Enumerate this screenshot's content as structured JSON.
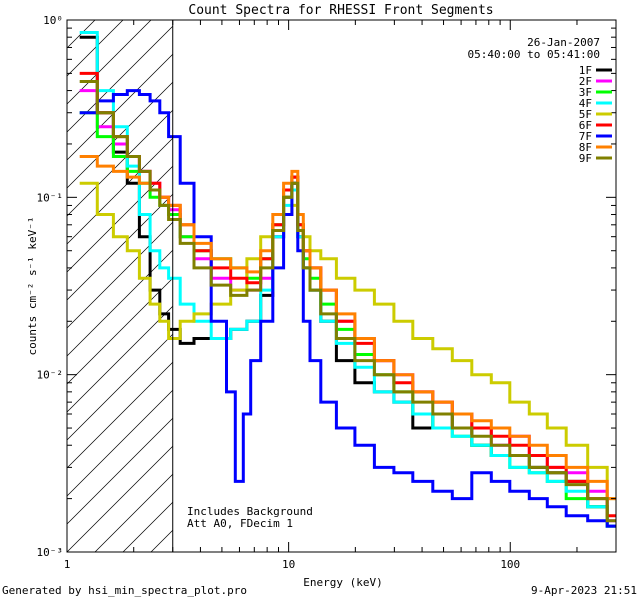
{
  "chart_data": {
    "type": "line",
    "title": "Count Spectra for RHESSI Front Segments",
    "xlabel": "Energy (keV)",
    "ylabel": "counts cm⁻² s⁻¹ keV⁻¹",
    "xscale": "log",
    "yscale": "log",
    "xlim": [
      1,
      300
    ],
    "ylim": [
      0.001,
      1
    ],
    "x_ticks": [
      {
        "value": 1,
        "label": "1"
      },
      {
        "value": 10,
        "label": "10"
      },
      {
        "value": 100,
        "label": "100"
      }
    ],
    "y_ticks": [
      {
        "value": 1,
        "label": "10⁰"
      },
      {
        "value": 0.1,
        "label": "10⁻¹"
      },
      {
        "value": 0.01,
        "label": "10⁻²"
      },
      {
        "value": 0.001,
        "label": "10⁻³"
      }
    ],
    "hatched_region": {
      "x_from": 1,
      "x_to": 3
    },
    "date": "26-Jan-2007",
    "time_range": "05:40:00 to 05:41:00",
    "legend": {
      "position": "top-right"
    },
    "annotations": [
      "Includes Background",
      "Att A0, FDecim 1"
    ],
    "footer_left": "Generated by hsi_min_spectra_plot.pro",
    "footer_right": "9-Apr-2023 21:51",
    "series": [
      {
        "name": "1F",
        "color": "#000000",
        "x": [
          1.25,
          1.5,
          1.75,
          2.0,
          2.25,
          2.5,
          2.75,
          3.0,
          3.5,
          4.0,
          5.0,
          6.0,
          7.0,
          8.0,
          9.0,
          10.0,
          10.7,
          11.3,
          12.0,
          13.0,
          15.0,
          18.0,
          22.0,
          27.0,
          33.0,
          40.0,
          50.0,
          60.0,
          75.0,
          90.0,
          110.0,
          135.0,
          160.0,
          200.0,
          250.0,
          300.0
        ],
        "values": [
          0.8,
          0.3,
          0.18,
          0.12,
          0.06,
          0.03,
          0.022,
          0.018,
          0.015,
          0.016,
          0.016,
          0.018,
          0.02,
          0.028,
          0.06,
          0.1,
          0.13,
          0.06,
          0.04,
          0.03,
          0.02,
          0.012,
          0.009,
          0.008,
          0.007,
          0.005,
          0.006,
          0.005,
          0.004,
          0.0035,
          0.0035,
          0.003,
          0.0028,
          0.0025,
          0.0018,
          0.0014
        ]
      },
      {
        "name": "2F",
        "color": "#ff00ff",
        "x": [
          1.25,
          1.5,
          1.75,
          2.0,
          2.25,
          2.5,
          2.75,
          3.0,
          3.5,
          4.0,
          5.0,
          6.0,
          7.0,
          8.0,
          9.0,
          10.0,
          10.7,
          11.3,
          12.0,
          13.0,
          15.0,
          18.0,
          22.0,
          27.0,
          33.0,
          40.0,
          50.0,
          60.0,
          75.0,
          90.0,
          110.0,
          135.0,
          160.0,
          200.0,
          250.0,
          300.0
        ],
        "values": [
          0.4,
          0.25,
          0.2,
          0.17,
          0.14,
          0.12,
          0.1,
          0.085,
          0.06,
          0.045,
          0.035,
          0.03,
          0.03,
          0.035,
          0.06,
          0.1,
          0.12,
          0.07,
          0.05,
          0.04,
          0.03,
          0.02,
          0.016,
          0.012,
          0.01,
          0.008,
          0.007,
          0.006,
          0.005,
          0.004,
          0.0045,
          0.0035,
          0.003,
          0.0028,
          0.0022,
          0.0015
        ]
      },
      {
        "name": "3F",
        "color": "#00ff00",
        "x": [
          1.25,
          1.5,
          1.75,
          2.0,
          2.25,
          2.5,
          2.75,
          3.0,
          3.5,
          4.0,
          5.0,
          6.0,
          7.0,
          8.0,
          9.0,
          10.0,
          10.7,
          11.3,
          12.0,
          13.0,
          15.0,
          18.0,
          22.0,
          27.0,
          33.0,
          40.0,
          50.0,
          60.0,
          75.0,
          90.0,
          110.0,
          135.0,
          160.0,
          200.0,
          250.0,
          300.0
        ],
        "values": [
          0.3,
          0.22,
          0.17,
          0.14,
          0.12,
          0.1,
          0.09,
          0.08,
          0.06,
          0.05,
          0.045,
          0.04,
          0.035,
          0.045,
          0.07,
          0.1,
          0.12,
          0.07,
          0.045,
          0.035,
          0.025,
          0.018,
          0.013,
          0.01,
          0.008,
          0.006,
          0.005,
          0.0045,
          0.004,
          0.0035,
          0.003,
          0.0028,
          0.0025,
          0.002,
          0.0018,
          0.0014
        ]
      },
      {
        "name": "4F",
        "color": "#00ffff",
        "x": [
          1.25,
          1.5,
          1.75,
          2.0,
          2.25,
          2.5,
          2.75,
          3.0,
          3.5,
          4.0,
          5.0,
          6.0,
          7.0,
          8.0,
          9.0,
          10.0,
          10.7,
          11.3,
          12.0,
          13.0,
          15.0,
          18.0,
          22.0,
          27.0,
          33.0,
          40.0,
          50.0,
          60.0,
          75.0,
          90.0,
          110.0,
          135.0,
          160.0,
          200.0,
          250.0,
          300.0
        ],
        "values": [
          0.85,
          0.4,
          0.25,
          0.15,
          0.08,
          0.05,
          0.04,
          0.035,
          0.025,
          0.02,
          0.016,
          0.018,
          0.02,
          0.03,
          0.06,
          0.09,
          0.11,
          0.06,
          0.04,
          0.03,
          0.02,
          0.015,
          0.011,
          0.008,
          0.007,
          0.006,
          0.005,
          0.0045,
          0.004,
          0.0035,
          0.003,
          0.0028,
          0.0025,
          0.0022,
          0.0018,
          0.0014
        ]
      },
      {
        "name": "5F",
        "color": "#cccc00",
        "x": [
          1.25,
          1.5,
          1.75,
          2.0,
          2.25,
          2.5,
          2.75,
          3.0,
          3.5,
          4.0,
          5.0,
          6.0,
          7.0,
          8.0,
          9.0,
          10.0,
          10.7,
          11.3,
          12.0,
          13.0,
          15.0,
          18.0,
          22.0,
          27.0,
          33.0,
          40.0,
          50.0,
          60.0,
          75.0,
          90.0,
          110.0,
          135.0,
          160.0,
          200.0,
          250.0,
          300.0
        ],
        "values": [
          0.12,
          0.08,
          0.06,
          0.05,
          0.035,
          0.025,
          0.02,
          0.016,
          0.02,
          0.022,
          0.025,
          0.03,
          0.045,
          0.06,
          0.07,
          0.08,
          0.09,
          0.07,
          0.06,
          0.05,
          0.045,
          0.035,
          0.03,
          0.025,
          0.02,
          0.016,
          0.014,
          0.012,
          0.01,
          0.009,
          0.007,
          0.006,
          0.005,
          0.004,
          0.003,
          0.002
        ]
      },
      {
        "name": "6F",
        "color": "#ff0000",
        "x": [
          1.25,
          1.5,
          1.75,
          2.0,
          2.25,
          2.5,
          2.75,
          3.0,
          3.5,
          4.0,
          5.0,
          6.0,
          7.0,
          8.0,
          9.0,
          10.0,
          10.7,
          11.3,
          12.0,
          13.0,
          15.0,
          18.0,
          22.0,
          27.0,
          33.0,
          40.0,
          50.0,
          60.0,
          75.0,
          90.0,
          110.0,
          135.0,
          160.0,
          200.0,
          250.0,
          300.0
        ],
        "values": [
          0.5,
          0.3,
          0.22,
          0.17,
          0.14,
          0.12,
          0.1,
          0.09,
          0.07,
          0.05,
          0.04,
          0.035,
          0.033,
          0.045,
          0.07,
          0.11,
          0.13,
          0.07,
          0.05,
          0.04,
          0.03,
          0.02,
          0.015,
          0.012,
          0.009,
          0.008,
          0.007,
          0.006,
          0.005,
          0.0045,
          0.004,
          0.0035,
          0.003,
          0.0025,
          0.002,
          0.0016
        ]
      },
      {
        "name": "7F",
        "color": "#0000ff",
        "x": [
          1.25,
          1.5,
          1.75,
          2.0,
          2.25,
          2.5,
          2.75,
          3.0,
          3.5,
          4.0,
          5.0,
          5.5,
          6.0,
          6.5,
          7.0,
          8.0,
          9.0,
          10.0,
          10.7,
          11.3,
          12.0,
          13.0,
          15.0,
          18.0,
          22.0,
          27.0,
          33.0,
          40.0,
          50.0,
          60.0,
          75.0,
          90.0,
          110.0,
          135.0,
          160.0,
          200.0,
          250.0,
          300.0
        ],
        "values": [
          0.3,
          0.35,
          0.38,
          0.4,
          0.38,
          0.35,
          0.3,
          0.22,
          0.12,
          0.06,
          0.02,
          0.008,
          0.0025,
          0.006,
          0.012,
          0.02,
          0.04,
          0.08,
          0.12,
          0.05,
          0.02,
          0.012,
          0.007,
          0.005,
          0.004,
          0.003,
          0.0028,
          0.0025,
          0.0022,
          0.002,
          0.0028,
          0.0025,
          0.0022,
          0.002,
          0.0018,
          0.0016,
          0.0015,
          0.0014
        ]
      },
      {
        "name": "8F",
        "color": "#ff8000",
        "x": [
          1.25,
          1.5,
          1.75,
          2.0,
          2.25,
          2.5,
          2.75,
          3.0,
          3.5,
          4.0,
          5.0,
          6.0,
          7.0,
          8.0,
          9.0,
          10.0,
          10.7,
          11.3,
          12.0,
          13.0,
          15.0,
          18.0,
          22.0,
          27.0,
          33.0,
          40.0,
          50.0,
          60.0,
          75.0,
          90.0,
          110.0,
          135.0,
          160.0,
          200.0,
          250.0,
          300.0
        ],
        "values": [
          0.17,
          0.15,
          0.14,
          0.13,
          0.12,
          0.11,
          0.1,
          0.09,
          0.07,
          0.055,
          0.045,
          0.04,
          0.038,
          0.05,
          0.08,
          0.12,
          0.14,
          0.08,
          0.05,
          0.04,
          0.03,
          0.022,
          0.016,
          0.012,
          0.01,
          0.008,
          0.007,
          0.006,
          0.0055,
          0.005,
          0.0045,
          0.004,
          0.0035,
          0.003,
          0.0025,
          0.002
        ]
      },
      {
        "name": "9F",
        "color": "#808000",
        "x": [
          1.25,
          1.5,
          1.75,
          2.0,
          2.25,
          2.5,
          2.75,
          3.0,
          3.5,
          4.0,
          5.0,
          6.0,
          7.0,
          8.0,
          9.0,
          10.0,
          10.7,
          11.3,
          12.0,
          13.0,
          15.0,
          18.0,
          22.0,
          27.0,
          33.0,
          40.0,
          50.0,
          60.0,
          75.0,
          90.0,
          110.0,
          135.0,
          160.0,
          200.0,
          250.0,
          300.0
        ],
        "values": [
          0.45,
          0.3,
          0.22,
          0.17,
          0.14,
          0.11,
          0.09,
          0.075,
          0.055,
          0.04,
          0.032,
          0.028,
          0.03,
          0.04,
          0.065,
          0.1,
          0.12,
          0.065,
          0.04,
          0.03,
          0.022,
          0.016,
          0.012,
          0.01,
          0.008,
          0.007,
          0.006,
          0.005,
          0.0045,
          0.004,
          0.0035,
          0.003,
          0.0028,
          0.0024,
          0.002,
          0.0015
        ]
      }
    ]
  }
}
